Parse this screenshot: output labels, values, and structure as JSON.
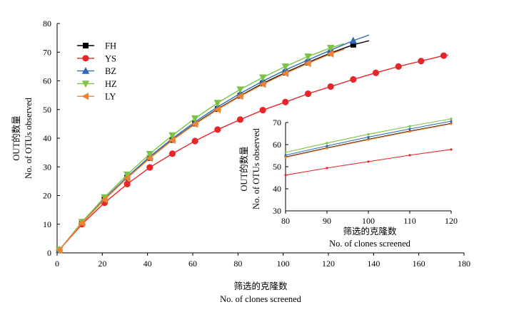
{
  "chart_data": [
    {
      "type": "line",
      "xlabel_zh": "筛选的克隆数",
      "xlabel_en": "No. of clones screened",
      "ylabel_zh": "OUT的数量",
      "ylabel_en": "No. of OTUs observed",
      "xlim": [
        0,
        180
      ],
      "ylim": [
        0,
        80
      ],
      "xticks": [
        "0",
        "20",
        "40",
        "60",
        "80",
        "100",
        "120",
        "140",
        "160",
        "180"
      ],
      "yticks": [
        "0",
        "10",
        "20",
        "30",
        "40",
        "50",
        "60",
        "70",
        "80"
      ],
      "legend_position": "top-left",
      "series": [
        {
          "name": "FH",
          "color": "#000000",
          "marker": "square",
          "x": [
            1,
            11,
            21,
            31,
            41,
            51,
            61,
            71,
            81,
            91,
            101,
            111,
            121,
            131
          ],
          "y": [
            1,
            10.5,
            18.7,
            26.2,
            33.1,
            39.4,
            45.1,
            50.2,
            54.8,
            59.1,
            62.9,
            66.4,
            69.7,
            72.6
          ],
          "line_end": [
            138,
            74
          ]
        },
        {
          "name": "YS",
          "color": "#e8262a",
          "marker": "circle",
          "x": [
            1,
            11,
            21,
            31,
            41,
            51,
            61,
            71,
            81,
            91,
            101,
            111,
            121,
            131,
            141,
            151,
            161,
            171
          ],
          "y": [
            1,
            10,
            17.5,
            24,
            29.8,
            34.6,
            39,
            43,
            46.5,
            49.8,
            52.6,
            55.5,
            58,
            60.5,
            62.8,
            65,
            66.9,
            68.8
          ],
          "line_end": [
            173,
            69
          ]
        },
        {
          "name": "BZ",
          "color": "#2f6bb6",
          "marker": "triangle-up",
          "x": [
            1,
            11,
            21,
            31,
            41,
            51,
            61,
            71,
            81,
            91,
            101,
            111,
            121,
            131
          ],
          "y": [
            1,
            10.6,
            18.9,
            26.5,
            33.6,
            39.9,
            45.7,
            50.9,
            55.6,
            59.9,
            63.8,
            67.3,
            70.7,
            74
          ],
          "line_end": [
            138,
            76
          ]
        },
        {
          "name": "HZ",
          "color": "#7cc243",
          "marker": "triangle-down",
          "x": [
            1,
            11,
            21,
            31,
            41,
            51,
            61,
            71,
            81,
            91,
            101,
            111,
            121
          ],
          "y": [
            1,
            10.8,
            19.4,
            27.3,
            34.5,
            41,
            46.9,
            52.3,
            57,
            61.2,
            65,
            68.5,
            71.5
          ],
          "line_end": [
            127,
            73
          ]
        },
        {
          "name": "LY",
          "color": "#f08232",
          "marker": "triangle-left",
          "x": [
            1,
            11,
            21,
            31,
            41,
            51,
            61,
            71,
            81,
            91,
            101,
            111,
            121
          ],
          "y": [
            1,
            10.4,
            18.6,
            26.1,
            33,
            39.3,
            44.9,
            50,
            54.6,
            58.8,
            62.6,
            66.1,
            69.4
          ],
          "line_end": [
            127,
            71
          ]
        }
      ]
    },
    {
      "type": "line",
      "xlabel_zh": "筛选的克隆数",
      "xlabel_en": "No. of clones screened",
      "ylabel_zh": "OUT的数量",
      "ylabel_en": "No. of OTUs observed",
      "xlim": [
        80,
        120
      ],
      "ylim": [
        30,
        70
      ],
      "xticks": [
        "80",
        "90",
        "100",
        "110",
        "120"
      ],
      "yticks": [
        "30",
        "40",
        "50",
        "60",
        "70"
      ],
      "series": [
        {
          "name": "FH",
          "color": "#000000",
          "x": [
            80,
            90,
            100,
            110,
            120
          ],
          "y": [
            54.4,
            58.5,
            62.4,
            66.1,
            69.6
          ]
        },
        {
          "name": "YS",
          "color": "#e8262a",
          "x": [
            80,
            90,
            100,
            110,
            120
          ],
          "y": [
            46.2,
            49.4,
            52.3,
            55.2,
            57.8
          ]
        },
        {
          "name": "BZ",
          "color": "#2f6bb6",
          "x": [
            80,
            90,
            100,
            110,
            120
          ],
          "y": [
            55.2,
            59.4,
            63.4,
            67.1,
            70.6
          ]
        },
        {
          "name": "HZ",
          "color": "#7cc243",
          "x": [
            80,
            90,
            100,
            110,
            120
          ],
          "y": [
            56.5,
            60.7,
            64.7,
            68.3,
            71.7
          ]
        },
        {
          "name": "LY",
          "color": "#f08232",
          "x": [
            80,
            90,
            100,
            110,
            120
          ],
          "y": [
            54.2,
            58.3,
            62.2,
            65.9,
            69.4
          ]
        }
      ]
    }
  ]
}
